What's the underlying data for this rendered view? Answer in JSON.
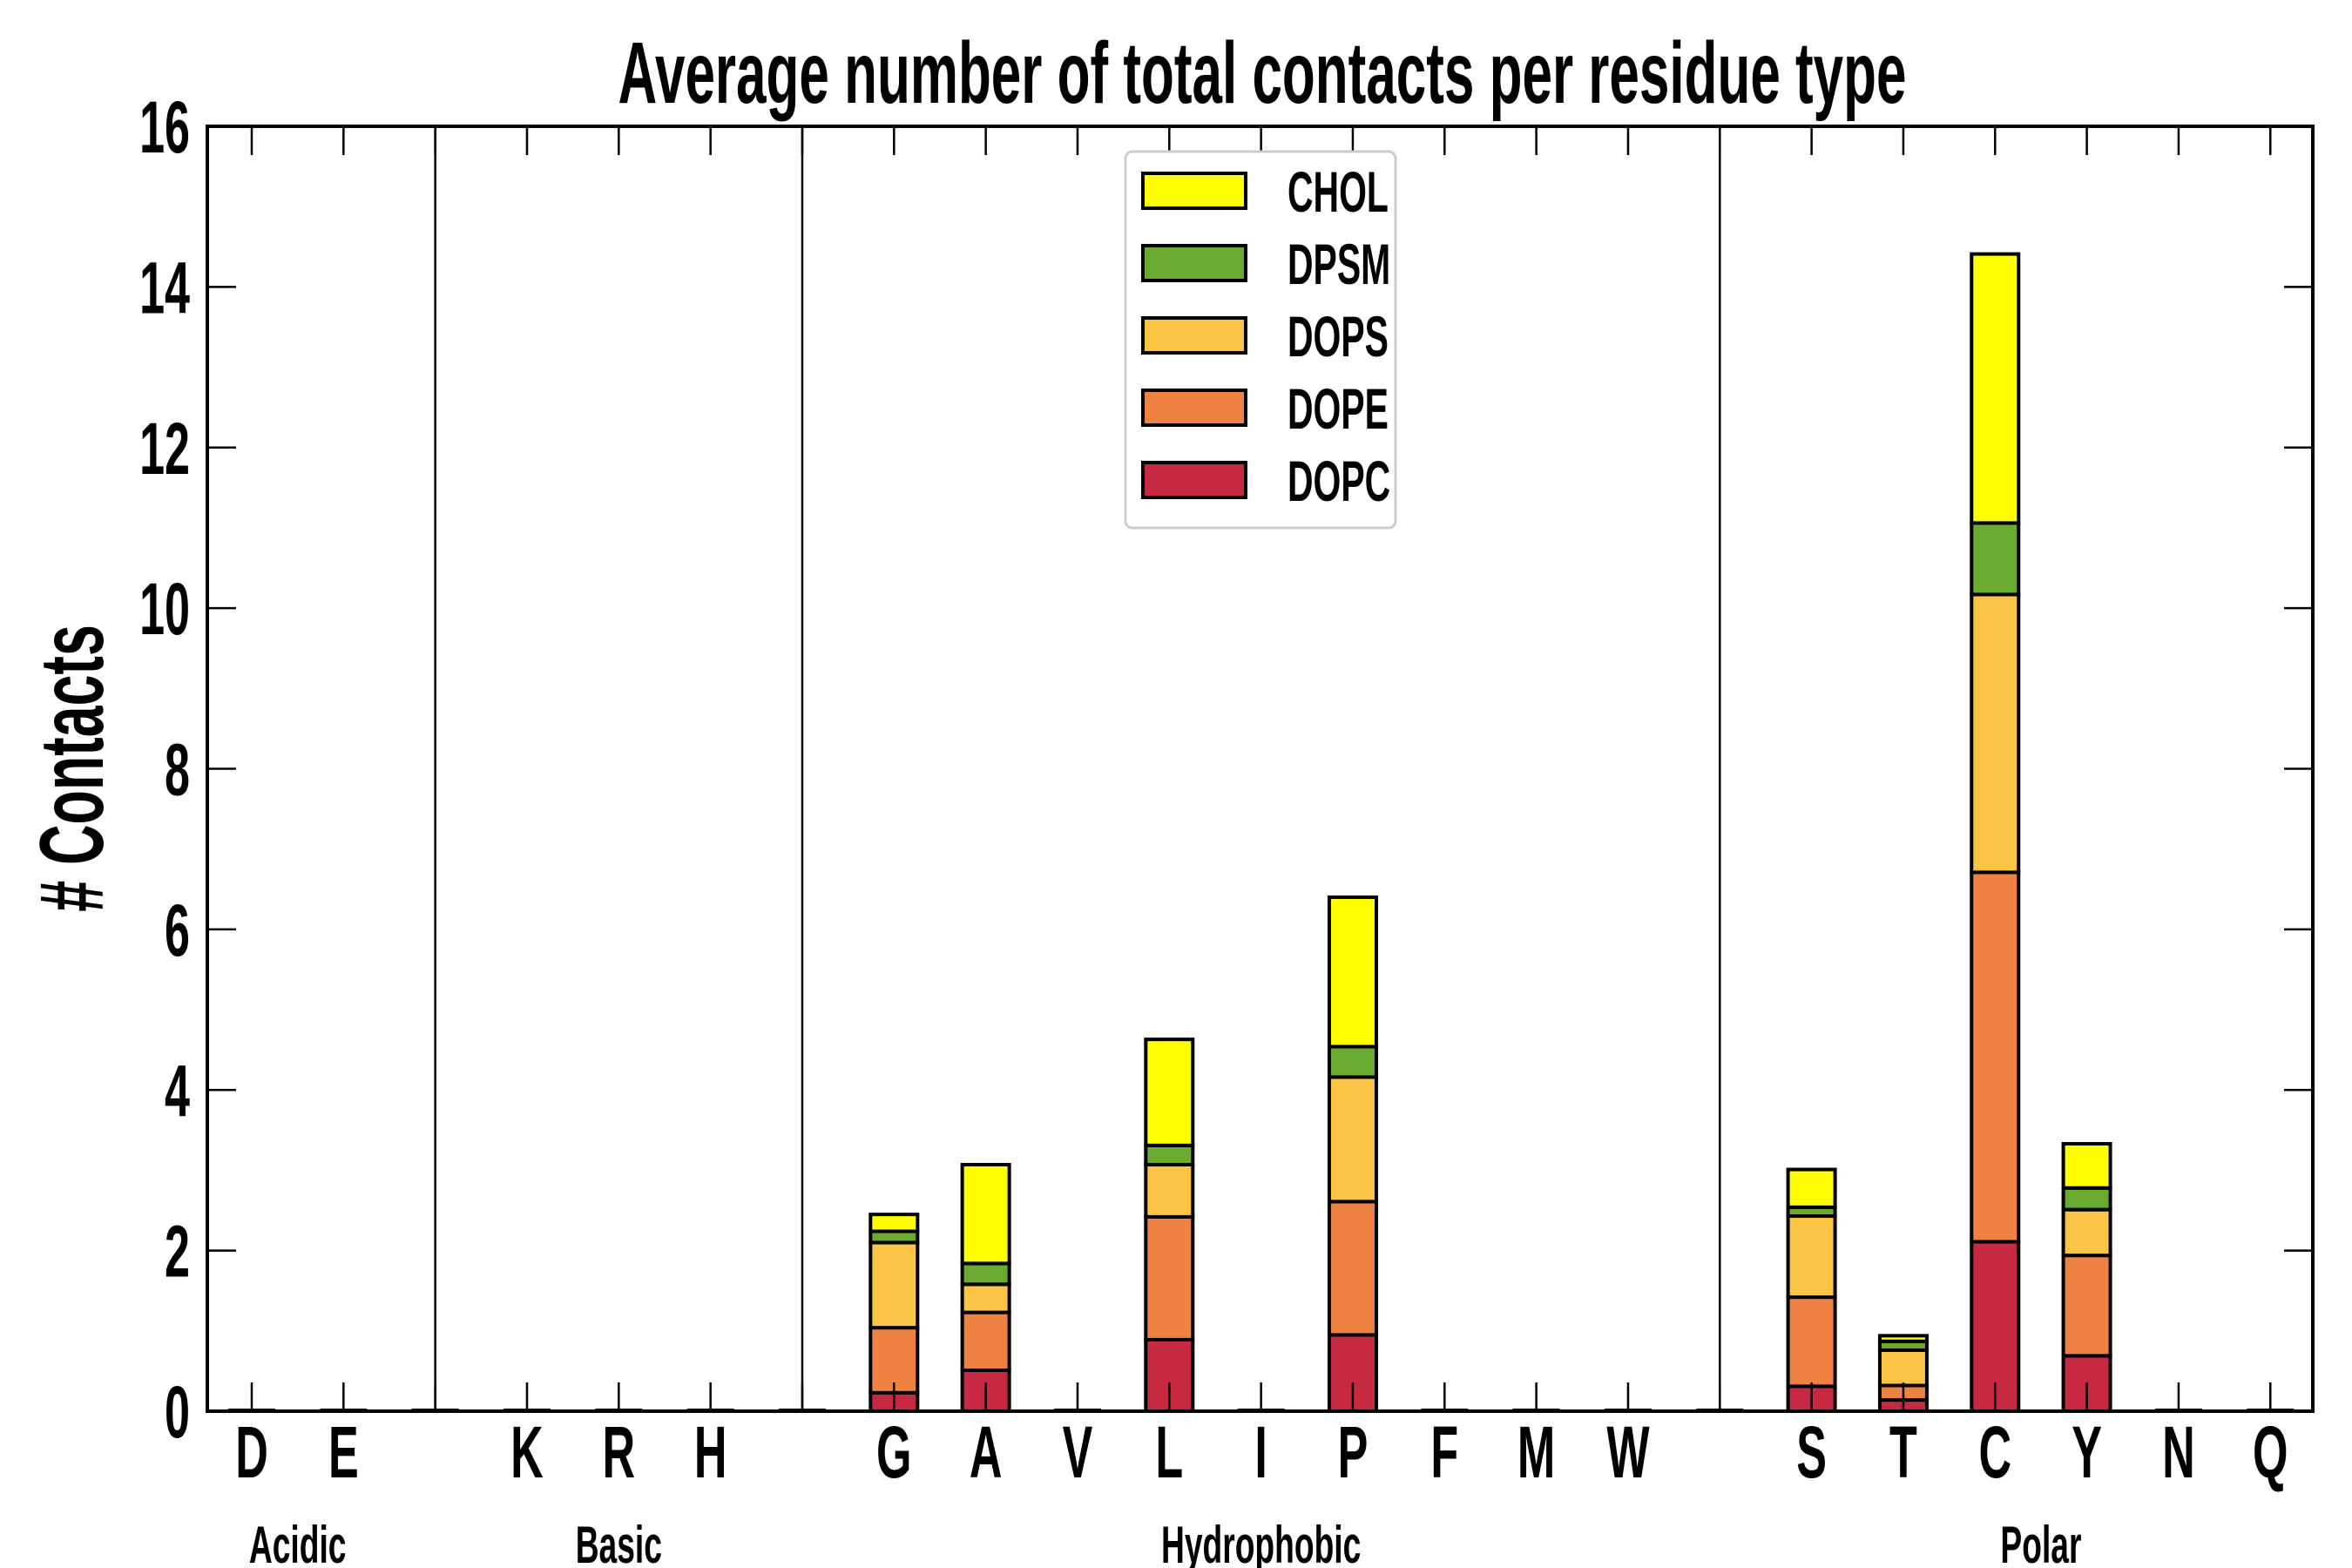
{
  "chart_data": {
    "type": "bar",
    "stacked": true,
    "title": "Average number of total contacts per residue type",
    "xlabel": "",
    "ylabel": "# Contacts",
    "ylim": [
      0,
      16
    ],
    "yticks": [
      "0",
      "2",
      "4",
      "6",
      "8",
      "10",
      "12",
      "14",
      "16"
    ],
    "grid": false,
    "legend_position": "top-center",
    "categories": [
      "D",
      "E",
      "",
      "K",
      "R",
      "H",
      "",
      "G",
      "A",
      "V",
      "L",
      "I",
      "P",
      "F",
      "M",
      "W",
      "",
      "S",
      "T",
      "C",
      "Y",
      "N",
      "Q"
    ],
    "groups": [
      {
        "label": "Acidic",
        "members": [
          "D",
          "E"
        ]
      },
      {
        "label": "Basic",
        "members": [
          "K",
          "R",
          "H"
        ]
      },
      {
        "label": "Hydrophobic",
        "members": [
          "G",
          "A",
          "V",
          "L",
          "I",
          "P",
          "F",
          "M",
          "W"
        ]
      },
      {
        "label": "Polar",
        "members": [
          "S",
          "T",
          "C",
          "Y",
          "N",
          "Q"
        ]
      }
    ],
    "series": [
      {
        "name": "DOPC",
        "color": "#C72842",
        "values": [
          0,
          0,
          0,
          0,
          0,
          0,
          0,
          0.23,
          0.51,
          0,
          0.89,
          0,
          0.95,
          0,
          0,
          0,
          0,
          0.31,
          0.14,
          2.11,
          0.69,
          0,
          0
        ]
      },
      {
        "name": "DOPE",
        "color": "#EE8242",
        "values": [
          0,
          0,
          0,
          0,
          0,
          0,
          0,
          0.81,
          0.72,
          0,
          1.53,
          0,
          1.66,
          0,
          0,
          0,
          0,
          1.11,
          0.18,
          4.6,
          1.25,
          0,
          0
        ]
      },
      {
        "name": "DOPS",
        "color": "#FBC444",
        "values": [
          0,
          0,
          0,
          0,
          0,
          0,
          0,
          1.06,
          0.35,
          0,
          0.65,
          0,
          1.55,
          0,
          0,
          0,
          0,
          1.01,
          0.44,
          3.46,
          0.57,
          0,
          0
        ]
      },
      {
        "name": "DPSM",
        "color": "#6AAA2E",
        "values": [
          0,
          0,
          0,
          0,
          0,
          0,
          0,
          0.14,
          0.26,
          0,
          0.24,
          0,
          0.38,
          0,
          0,
          0,
          0,
          0.11,
          0.11,
          0.89,
          0.27,
          0,
          0
        ]
      },
      {
        "name": "CHOL",
        "color": "#FFFF00",
        "values": [
          0,
          0,
          0,
          0,
          0,
          0,
          0,
          0.21,
          1.23,
          0,
          1.32,
          0,
          1.86,
          0,
          0,
          0,
          0,
          0.47,
          0.07,
          3.35,
          0.55,
          0,
          0
        ]
      }
    ],
    "legend_order": [
      "CHOL",
      "DPSM",
      "DOPS",
      "DOPE",
      "DOPC"
    ]
  }
}
